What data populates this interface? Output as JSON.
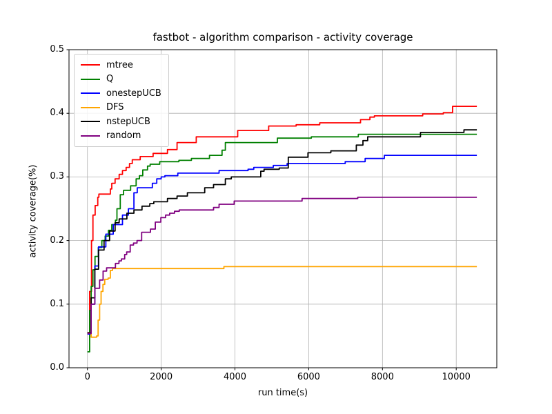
{
  "figure": {
    "background": "#ffffff",
    "grid_color": "#b0b0b0",
    "spine_color": "#000000"
  },
  "chart_data": {
    "type": "line",
    "step": "post",
    "title": "fastbot - algorithm comparison - activity coverage",
    "xlabel": "run time(s)",
    "ylabel": "activity coverage(%)",
    "xlim": [
      -500,
      11100
    ],
    "ylim": [
      0.0,
      0.5
    ],
    "xticks": [
      "0",
      "2000",
      "4000",
      "6000",
      "8000",
      "10000"
    ],
    "yticks": [
      "0.0",
      "0.1",
      "0.2",
      "0.3",
      "0.4",
      "0.5"
    ],
    "grid": true,
    "legend_position": "upper left",
    "series": [
      {
        "name": "mtree",
        "color": "#ff0000",
        "points": [
          [
            0,
            0.055
          ],
          [
            60,
            0.12
          ],
          [
            110,
            0.2
          ],
          [
            150,
            0.24
          ],
          [
            210,
            0.255
          ],
          [
            280,
            0.268
          ],
          [
            310,
            0.273
          ],
          [
            620,
            0.281
          ],
          [
            660,
            0.29
          ],
          [
            750,
            0.297
          ],
          [
            860,
            0.304
          ],
          [
            950,
            0.31
          ],
          [
            1050,
            0.315
          ],
          [
            1140,
            0.321
          ],
          [
            1215,
            0.327
          ],
          [
            1430,
            0.332
          ],
          [
            1780,
            0.337
          ],
          [
            2170,
            0.343
          ],
          [
            2430,
            0.354
          ],
          [
            2950,
            0.363
          ],
          [
            4075,
            0.373
          ],
          [
            4915,
            0.38
          ],
          [
            5660,
            0.382
          ],
          [
            6300,
            0.385
          ],
          [
            7405,
            0.39
          ],
          [
            7660,
            0.394
          ],
          [
            7780,
            0.396
          ],
          [
            9090,
            0.399
          ],
          [
            9650,
            0.401
          ],
          [
            9900,
            0.411
          ],
          [
            10560,
            0.411
          ]
        ]
      },
      {
        "name": "Q",
        "color": "#008000",
        "points": [
          [
            0,
            0.025
          ],
          [
            60,
            0.09
          ],
          [
            100,
            0.128
          ],
          [
            150,
            0.154
          ],
          [
            205,
            0.175
          ],
          [
            295,
            0.189
          ],
          [
            390,
            0.2
          ],
          [
            480,
            0.207
          ],
          [
            570,
            0.216
          ],
          [
            660,
            0.225
          ],
          [
            760,
            0.232
          ],
          [
            800,
            0.25
          ],
          [
            890,
            0.272
          ],
          [
            980,
            0.279
          ],
          [
            1170,
            0.286
          ],
          [
            1320,
            0.297
          ],
          [
            1410,
            0.302
          ],
          [
            1500,
            0.311
          ],
          [
            1630,
            0.317
          ],
          [
            1700,
            0.32
          ],
          [
            1960,
            0.324
          ],
          [
            2480,
            0.326
          ],
          [
            2820,
            0.329
          ],
          [
            3310,
            0.334
          ],
          [
            3650,
            0.342
          ],
          [
            3740,
            0.354
          ],
          [
            5150,
            0.361
          ],
          [
            6070,
            0.363
          ],
          [
            7345,
            0.367
          ],
          [
            10560,
            0.367
          ]
        ]
      },
      {
        "name": "onestepUCB",
        "color": "#0000ff",
        "points": [
          [
            0,
            0.053
          ],
          [
            100,
            0.1
          ],
          [
            200,
            0.16
          ],
          [
            300,
            0.19
          ],
          [
            500,
            0.21
          ],
          [
            700,
            0.225
          ],
          [
            950,
            0.24
          ],
          [
            1110,
            0.25
          ],
          [
            1260,
            0.275
          ],
          [
            1350,
            0.283
          ],
          [
            1760,
            0.29
          ],
          [
            1880,
            0.297
          ],
          [
            2000,
            0.3
          ],
          [
            2100,
            0.302
          ],
          [
            2450,
            0.306
          ],
          [
            3570,
            0.31
          ],
          [
            4355,
            0.312
          ],
          [
            4510,
            0.315
          ],
          [
            5040,
            0.318
          ],
          [
            5415,
            0.321
          ],
          [
            6990,
            0.324
          ],
          [
            7530,
            0.329
          ],
          [
            8050,
            0.334
          ],
          [
            10560,
            0.334
          ]
        ]
      },
      {
        "name": "DFS",
        "color": "#ffa500",
        "points": [
          [
            0,
            0.055
          ],
          [
            100,
            0.048
          ],
          [
            250,
            0.05
          ],
          [
            290,
            0.075
          ],
          [
            330,
            0.1
          ],
          [
            370,
            0.12
          ],
          [
            420,
            0.131
          ],
          [
            470,
            0.139
          ],
          [
            560,
            0.141
          ],
          [
            620,
            0.153
          ],
          [
            680,
            0.156
          ],
          [
            3700,
            0.159
          ],
          [
            10560,
            0.159
          ]
        ]
      },
      {
        "name": "nstepUCB",
        "color": "#000000",
        "points": [
          [
            0,
            0.055
          ],
          [
            100,
            0.11
          ],
          [
            200,
            0.155
          ],
          [
            300,
            0.185
          ],
          [
            450,
            0.2
          ],
          [
            600,
            0.215
          ],
          [
            750,
            0.228
          ],
          [
            860,
            0.234
          ],
          [
            1070,
            0.243
          ],
          [
            1260,
            0.248
          ],
          [
            1480,
            0.254
          ],
          [
            1690,
            0.258
          ],
          [
            1800,
            0.261
          ],
          [
            2170,
            0.266
          ],
          [
            2430,
            0.27
          ],
          [
            2710,
            0.275
          ],
          [
            3180,
            0.283
          ],
          [
            3420,
            0.288
          ],
          [
            3740,
            0.297
          ],
          [
            3900,
            0.3
          ],
          [
            4700,
            0.309
          ],
          [
            4790,
            0.312
          ],
          [
            5200,
            0.314
          ],
          [
            5445,
            0.331
          ],
          [
            5980,
            0.338
          ],
          [
            6600,
            0.341
          ],
          [
            7290,
            0.35
          ],
          [
            7470,
            0.357
          ],
          [
            7600,
            0.363
          ],
          [
            9030,
            0.37
          ],
          [
            10210,
            0.374
          ],
          [
            10560,
            0.374
          ]
        ]
      },
      {
        "name": "random",
        "color": "#800080",
        "points": [
          [
            0,
            0.054
          ],
          [
            100,
            0.1
          ],
          [
            200,
            0.125
          ],
          [
            330,
            0.138
          ],
          [
            425,
            0.152
          ],
          [
            520,
            0.157
          ],
          [
            760,
            0.164
          ],
          [
            855,
            0.168
          ],
          [
            920,
            0.171
          ],
          [
            1010,
            0.178
          ],
          [
            1065,
            0.182
          ],
          [
            1160,
            0.193
          ],
          [
            1250,
            0.196
          ],
          [
            1345,
            0.2
          ],
          [
            1470,
            0.213
          ],
          [
            1710,
            0.218
          ],
          [
            1840,
            0.229
          ],
          [
            1990,
            0.236
          ],
          [
            2120,
            0.24
          ],
          [
            2230,
            0.243
          ],
          [
            2360,
            0.246
          ],
          [
            2490,
            0.248
          ],
          [
            3420,
            0.252
          ],
          [
            3570,
            0.257
          ],
          [
            3980,
            0.262
          ],
          [
            5820,
            0.266
          ],
          [
            7330,
            0.268
          ],
          [
            10560,
            0.268
          ]
        ]
      }
    ]
  }
}
